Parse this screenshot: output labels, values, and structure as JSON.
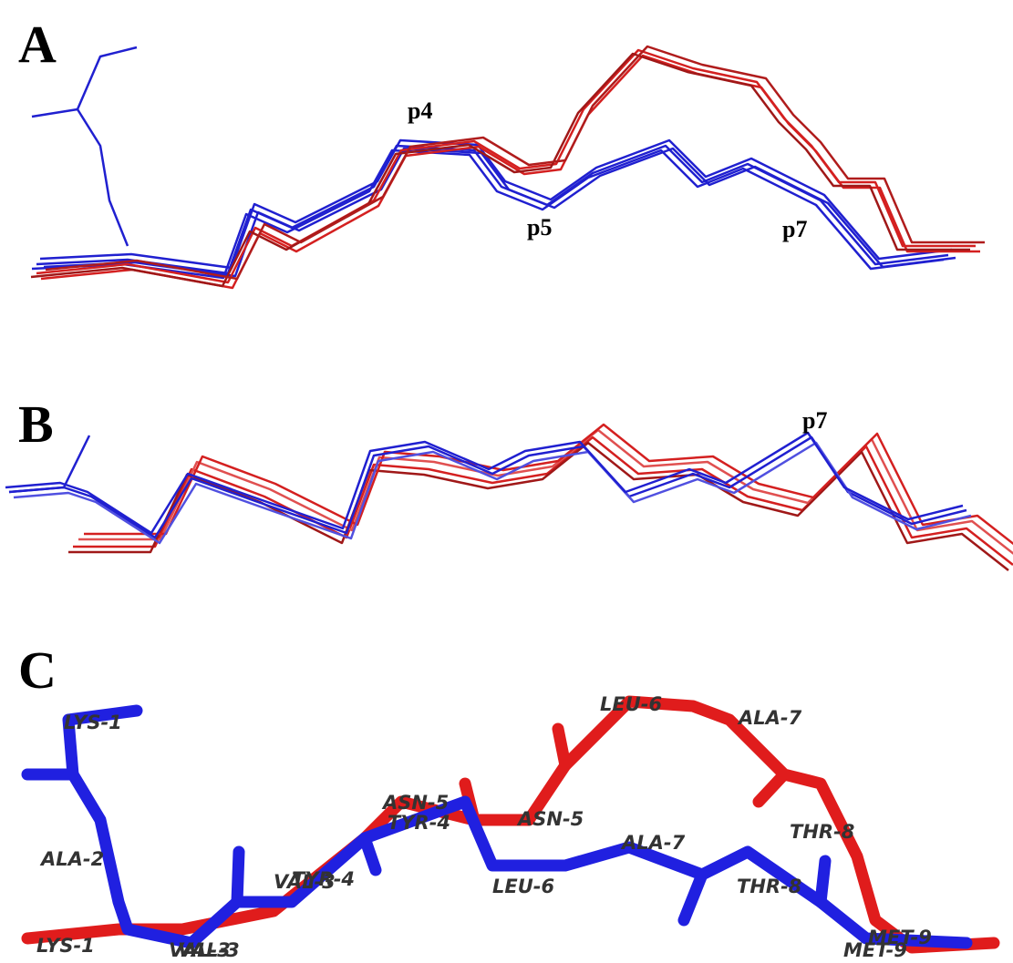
{
  "panels": [
    {
      "label": "A",
      "annotations": [
        "p4",
        "p5",
        "p7"
      ]
    },
    {
      "label": "B",
      "annotations": [
        "p7"
      ]
    },
    {
      "label": "C",
      "residue_labels": [
        "LYS-1",
        "ALA-2",
        "LYS-1",
        "VAL-3",
        "VAL-3",
        "VAL-3",
        "TYR-4",
        "ASN-5",
        "TYR-4",
        "ASN-5",
        "LEU-6",
        "ALA-7",
        "ALA-7",
        "LEU-6",
        "THR-8",
        "THR-8",
        "MET-9",
        "MET-9"
      ]
    }
  ]
}
